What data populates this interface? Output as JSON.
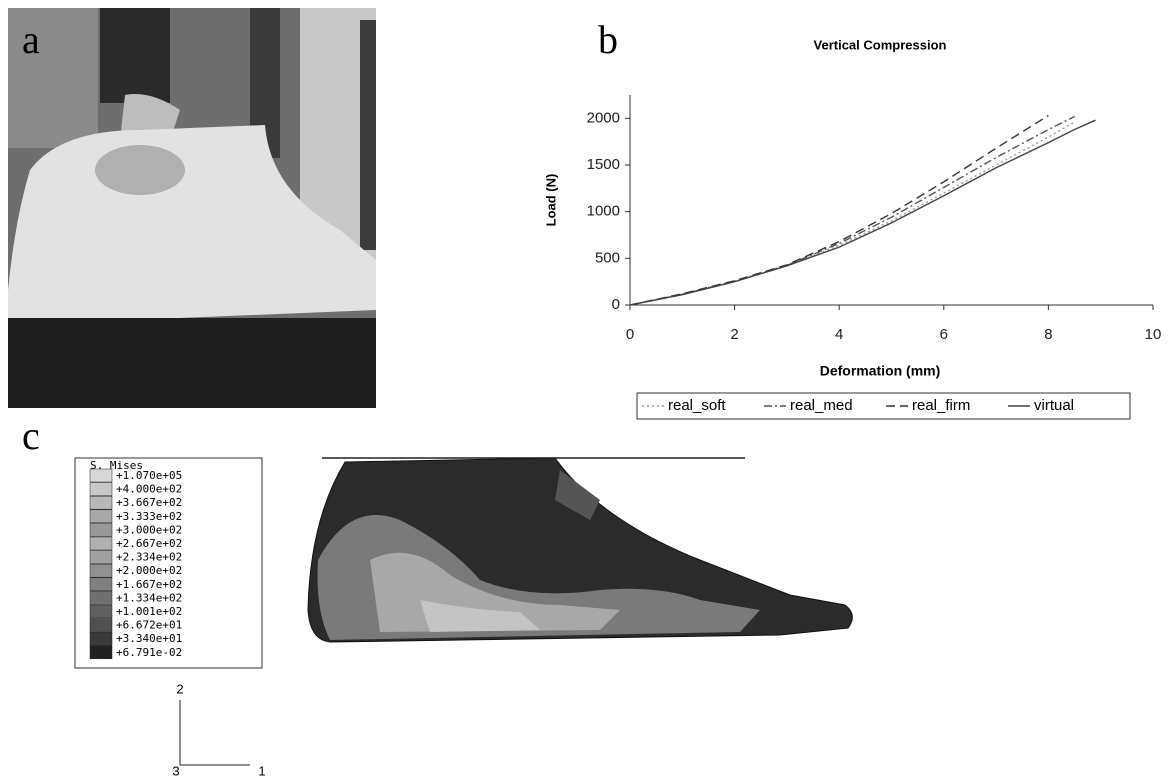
{
  "panel_labels": [
    "a",
    "b",
    "c"
  ],
  "chart_data": {
    "type": "line",
    "title": "Vertical Compression",
    "x_label": "Deformation (mm)",
    "y_label": "Load (N)",
    "x": [
      0,
      1,
      2,
      3,
      4,
      5,
      6,
      7,
      8,
      8.5,
      8.9
    ],
    "series": [
      {
        "name": "real_soft",
        "color": "#9a9a9a",
        "style": "dotted",
        "values": [
          0,
          112,
          250,
          420,
          640,
          900,
          1200,
          1500,
          1800,
          1960,
          null
        ]
      },
      {
        "name": "real_med",
        "color": "#555555",
        "style": "dashdot",
        "values": [
          0,
          115,
          255,
          425,
          660,
          940,
          1260,
          1580,
          1880,
          2020,
          null
        ]
      },
      {
        "name": "real_firm",
        "color": "#333333",
        "style": "dashed",
        "values": [
          0,
          120,
          260,
          430,
          680,
          980,
          1320,
          1680,
          2030,
          null,
          null
        ]
      },
      {
        "name": "virtual",
        "color": "#444444",
        "style": "solid",
        "values": [
          0,
          110,
          250,
          420,
          620,
          880,
          1170,
          1470,
          1740,
          1880,
          1980
        ]
      }
    ],
    "xlim": [
      0,
      10
    ],
    "xticks": [
      0,
      2,
      4,
      6,
      8,
      10
    ],
    "ylim": [
      0,
      2250
    ],
    "yticks": [
      0,
      500,
      1000,
      1500,
      2000
    ],
    "grid": false,
    "legend": "bottom"
  },
  "panel_c": {
    "legend": {
      "title": "S, Mises",
      "values": [
        "+1.070e+05",
        "+4.000e+02",
        "+3.667e+02",
        "+3.333e+02",
        "+3.000e+02",
        "+2.667e+02",
        "+2.334e+02",
        "+2.000e+02",
        "+1.667e+02",
        "+1.334e+02",
        "+1.001e+02",
        "+6.672e+01",
        "+3.340e+01",
        "+6.791e-02"
      ]
    },
    "triad": [
      "2",
      "3",
      "1"
    ]
  }
}
